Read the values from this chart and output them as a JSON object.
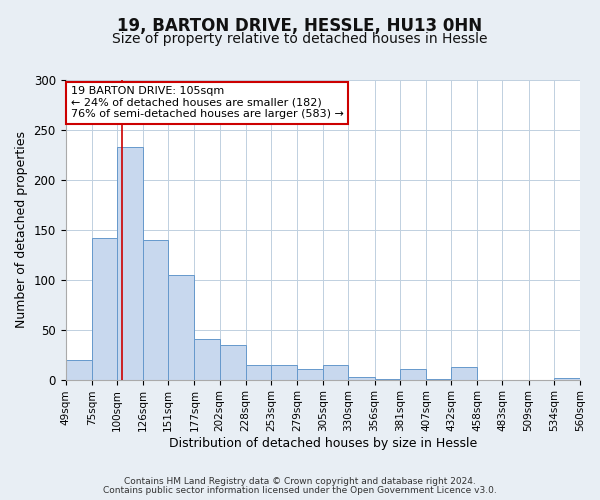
{
  "title": "19, BARTON DRIVE, HESSLE, HU13 0HN",
  "subtitle": "Size of property relative to detached houses in Hessle",
  "xlabel": "Distribution of detached houses by size in Hessle",
  "ylabel": "Number of detached properties",
  "bin_edges": [
    49,
    75,
    100,
    126,
    151,
    177,
    202,
    228,
    253,
    279,
    305,
    330,
    356,
    381,
    407,
    432,
    458,
    483,
    509,
    534,
    560
  ],
  "bar_heights": [
    20,
    142,
    233,
    140,
    105,
    41,
    35,
    15,
    15,
    11,
    15,
    3,
    1,
    11,
    1,
    13,
    0,
    0,
    0,
    2
  ],
  "bar_color": "#c8d8ee",
  "bar_edge_color": "#6699cc",
  "vline_x": 105,
  "vline_color": "#cc0000",
  "annotation_title": "19 BARTON DRIVE: 105sqm",
  "annotation_line1": "← 24% of detached houses are smaller (182)",
  "annotation_line2": "76% of semi-detached houses are larger (583) →",
  "annotation_box_facecolor": "#ffffff",
  "annotation_box_edgecolor": "#cc0000",
  "ylim": [
    0,
    300
  ],
  "yticks": [
    0,
    50,
    100,
    150,
    200,
    250,
    300
  ],
  "tick_labels": [
    "49sqm",
    "75sqm",
    "100sqm",
    "126sqm",
    "151sqm",
    "177sqm",
    "202sqm",
    "228sqm",
    "253sqm",
    "279sqm",
    "305sqm",
    "330sqm",
    "356sqm",
    "381sqm",
    "407sqm",
    "432sqm",
    "458sqm",
    "483sqm",
    "509sqm",
    "534sqm",
    "560sqm"
  ],
  "footer1": "Contains HM Land Registry data © Crown copyright and database right 2024.",
  "footer2": "Contains public sector information licensed under the Open Government Licence v3.0.",
  "fig_facecolor": "#e8eef4",
  "plot_facecolor": "#ffffff",
  "grid_color": "#c0d0e0",
  "title_fontsize": 12,
  "subtitle_fontsize": 10,
  "label_fontsize": 9,
  "tick_fontsize": 7.5,
  "annot_fontsize": 8,
  "footer_fontsize": 6.5
}
